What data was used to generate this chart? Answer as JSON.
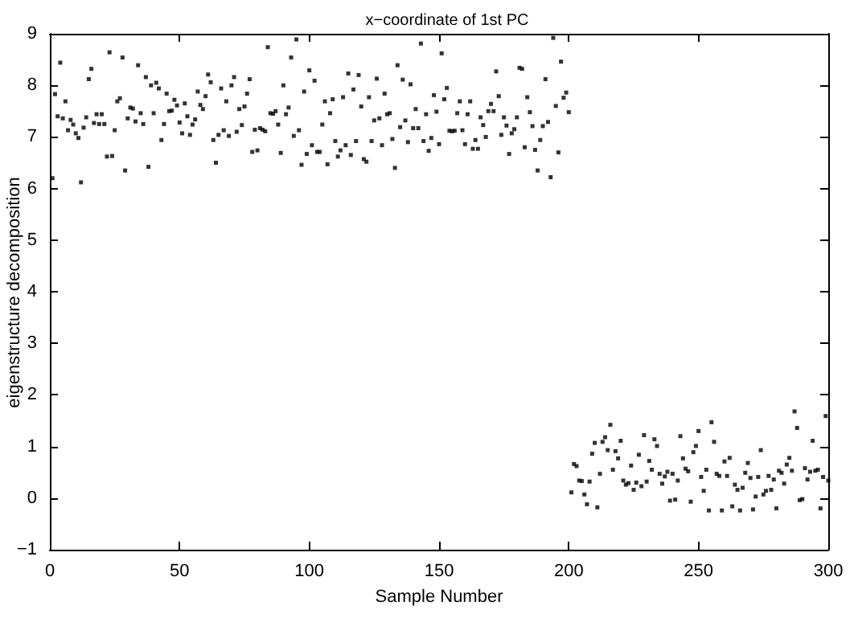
{
  "chart_data": {
    "type": "scatter",
    "title": "x−coordinate of 1st PC",
    "xlabel": "Sample Number",
    "ylabel": "eigenstructure decomposition",
    "xlim": [
      0,
      300
    ],
    "xticks": [
      0,
      50,
      100,
      150,
      200,
      250,
      300
    ],
    "ylim": [
      -1,
      9
    ],
    "yticks": [
      -1,
      0,
      1,
      2,
      3,
      4,
      5,
      6,
      7,
      8,
      9
    ],
    "grid": false,
    "marker": "square",
    "series": [
      {
        "color": "#000000",
        "x": [
          1,
          2,
          3,
          4,
          5,
          6,
          7,
          8,
          9,
          10,
          11,
          12,
          13,
          14,
          15,
          16,
          17,
          18,
          19,
          20,
          21,
          22,
          23,
          24,
          25,
          26,
          27,
          28,
          29,
          30,
          31,
          32,
          33,
          34,
          35,
          36,
          37,
          38,
          39,
          40,
          41,
          42,
          43,
          44,
          45,
          46,
          47,
          48,
          49,
          50,
          51,
          52,
          53,
          54,
          55,
          56,
          57,
          58,
          59,
          60,
          61,
          62,
          63,
          64,
          65,
          66,
          67,
          68,
          69,
          70,
          71,
          72,
          73,
          74,
          75,
          76,
          77,
          78,
          79,
          80,
          81,
          82,
          83,
          84,
          85,
          86,
          87,
          88,
          89,
          90,
          91,
          92,
          93,
          94,
          95,
          96,
          97,
          98,
          99,
          100,
          101,
          102,
          103,
          104,
          105,
          106,
          107,
          108,
          109,
          110,
          111,
          112,
          113,
          114,
          115,
          116,
          117,
          118,
          119,
          120,
          121,
          122,
          123,
          124,
          125,
          126,
          127,
          128,
          129,
          130,
          131,
          132,
          133,
          134,
          135,
          136,
          137,
          138,
          139,
          140,
          141,
          142,
          143,
          144,
          145,
          146,
          147,
          148,
          149,
          150,
          151,
          152,
          153,
          154,
          155,
          156,
          157,
          158,
          159,
          160,
          161,
          162,
          163,
          164,
          165,
          166,
          167,
          168,
          169,
          170,
          171,
          172,
          173,
          174,
          175,
          176,
          177,
          178,
          179,
          180,
          181,
          182,
          183,
          184,
          185,
          186,
          187,
          188,
          189,
          190,
          191,
          192,
          193,
          194,
          195,
          196,
          197,
          198,
          199,
          200,
          201,
          202,
          203,
          204,
          205,
          206,
          207,
          208,
          209,
          210,
          211,
          212,
          213,
          214,
          215,
          216,
          217,
          218,
          219,
          220,
          221,
          222,
          223,
          224,
          225,
          226,
          227,
          228,
          229,
          230,
          231,
          232,
          233,
          234,
          235,
          236,
          237,
          238,
          239,
          240,
          241,
          242,
          243,
          244,
          245,
          246,
          247,
          248,
          249,
          250,
          251,
          252,
          253,
          254,
          255,
          256,
          257,
          258,
          259,
          260,
          261,
          262,
          263,
          264,
          265,
          266,
          267,
          268,
          269,
          270,
          271,
          272,
          273,
          274,
          275,
          276,
          277,
          278,
          279,
          280,
          281,
          282,
          283,
          284,
          285,
          286,
          287,
          288,
          289,
          290,
          291,
          292,
          293,
          294,
          295,
          296,
          297,
          298,
          299,
          300
        ],
        "values": [
          6.2,
          7.83,
          7.4,
          8.44,
          7.36,
          7.69,
          7.13,
          7.33,
          7.24,
          7.07,
          6.98,
          6.12,
          7.18,
          7.38,
          8.12,
          8.32,
          7.27,
          7.44,
          7.25,
          7.44,
          7.25,
          6.62,
          8.64,
          6.63,
          7.13,
          7.69,
          7.75,
          8.54,
          6.35,
          7.36,
          7.57,
          7.55,
          7.3,
          8.39,
          7.46,
          7.25,
          8.16,
          6.42,
          8.0,
          7.46,
          8.05,
          7.94,
          6.94,
          7.25,
          7.84,
          7.5,
          7.51,
          7.72,
          7.61,
          7.28,
          7.07,
          7.65,
          7.4,
          7.04,
          7.24,
          7.34,
          7.88,
          7.62,
          7.54,
          7.79,
          8.21,
          8.06,
          6.94,
          6.5,
          7.04,
          7.94,
          7.13,
          7.69,
          7.02,
          8.0,
          8.16,
          7.1,
          7.54,
          7.23,
          7.59,
          7.84,
          8.12,
          6.71,
          7.14,
          6.74,
          7.17,
          7.14,
          7.11,
          8.74,
          7.46,
          7.45,
          7.5,
          7.24,
          6.69,
          8.0,
          7.44,
          7.57,
          8.54,
          7.02,
          8.89,
          7.13,
          6.46,
          7.88,
          6.67,
          8.29,
          6.84,
          8.09,
          6.71,
          6.71,
          7.24,
          7.69,
          6.47,
          7.46,
          7.73,
          6.92,
          6.62,
          6.74,
          7.77,
          6.84,
          8.23,
          6.65,
          7.92,
          6.92,
          8.2,
          7.59,
          6.57,
          6.52,
          7.77,
          6.92,
          7.32,
          8.13,
          7.36,
          6.84,
          7.84,
          7.44,
          7.46,
          6.96,
          6.4,
          8.39,
          7.19,
          8.11,
          7.32,
          6.9,
          8.02,
          7.17,
          7.54,
          7.17,
          8.81,
          6.92,
          7.44,
          6.73,
          6.98,
          7.81,
          7.49,
          6.86,
          8.62,
          7.73,
          7.95,
          7.12,
          7.11,
          7.12,
          7.46,
          7.69,
          7.13,
          6.86,
          7.44,
          7.69,
          6.77,
          6.94,
          6.77,
          7.38,
          7.23,
          7.0,
          7.5,
          7.64,
          7.5,
          8.27,
          7.79,
          7.04,
          7.38,
          7.22,
          6.67,
          7.07,
          7.15,
          7.38,
          8.34,
          8.32,
          6.8,
          7.77,
          7.48,
          7.21,
          6.75,
          6.35,
          6.94,
          7.21,
          8.12,
          7.29,
          6.22,
          8.92,
          7.6,
          6.7,
          8.46,
          7.76,
          7.86,
          7.48,
          0.11,
          0.66,
          0.62,
          0.34,
          0.33,
          0.07,
          -0.12,
          0.32,
          0.86,
          1.07,
          -0.18,
          0.47,
          1.09,
          1.18,
          0.93,
          1.42,
          0.55,
          0.91,
          0.77,
          1.11,
          0.34,
          0.26,
          0.29,
          0.63,
          0.16,
          0.3,
          0.84,
          0.23,
          1.22,
          0.32,
          0.72,
          0.55,
          1.14,
          1.01,
          0.47,
          0.28,
          0.42,
          0.51,
          -0.05,
          0.47,
          -0.03,
          0.34,
          1.2,
          0.77,
          0.57,
          0.52,
          -0.07,
          0.89,
          1.01,
          1.3,
          0.41,
          0.14,
          0.55,
          -0.24,
          1.47,
          1.09,
          0.47,
          0.43,
          -0.24,
          0.71,
          0.43,
          0.78,
          -0.16,
          0.26,
          0.16,
          -0.24,
          0.2,
          0.49,
          0.68,
          0.39,
          -0.22,
          0.03,
          0.41,
          0.93,
          0.07,
          0.14,
          0.43,
          0.16,
          0.36,
          -0.2,
          0.53,
          0.49,
          0.28,
          0.65,
          0.78,
          0.53,
          1.68,
          1.36,
          -0.04,
          -0.02,
          0.58,
          0.36,
          0.51,
          1.11,
          0.53,
          0.55,
          -0.2,
          0.41,
          1.59,
          0.34
        ]
      }
    ]
  }
}
